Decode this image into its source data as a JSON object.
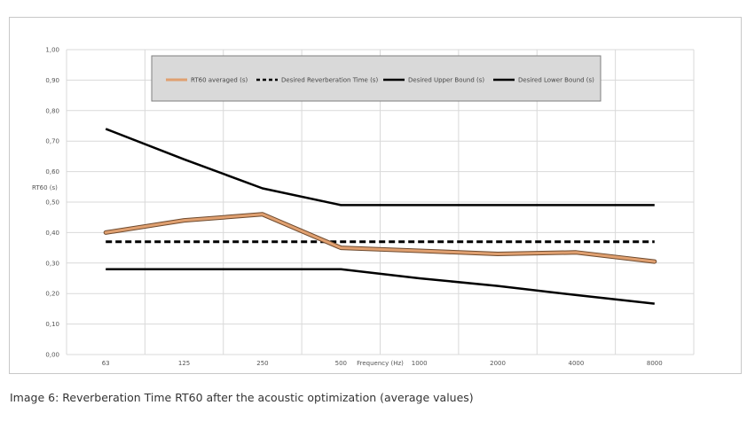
{
  "caption": "Image 6: Reverberation Time RT60 after the acoustic optimization (average values)",
  "chart_data": {
    "type": "line",
    "categories": [
      "63",
      "125",
      "250",
      "500",
      "1000",
      "2000",
      "4000",
      "8000"
    ],
    "xlabel": "Frequency (Hz)",
    "ylabel": "RT60 (s)",
    "ylim": [
      0,
      1
    ],
    "yticks": [
      "0,00",
      "0,10",
      "0,20",
      "0,30",
      "0,40",
      "0,50",
      "0,60",
      "0,70",
      "0,80",
      "0,90",
      "1,00"
    ],
    "grid": true,
    "legend_position": "top-center",
    "series": [
      {
        "name": "RT60 averaged (s)",
        "color": "#e0a070",
        "style": "solid-outlined",
        "values": [
          0.4,
          0.44,
          0.46,
          0.35,
          0.34,
          0.33,
          0.335,
          0.305
        ]
      },
      {
        "name": "Desired Reverberation Time (s)",
        "color": "#000000",
        "style": "dashed",
        "values": [
          0.37,
          0.37,
          0.37,
          0.37,
          0.37,
          0.37,
          0.37,
          0.37
        ]
      },
      {
        "name": "Desired Upper Bound (s)",
        "color": "#000000",
        "style": "solid",
        "values": [
          0.74,
          0.64,
          0.545,
          0.49,
          0.49,
          0.49,
          0.49,
          0.49
        ]
      },
      {
        "name": "Desired Lower Bound (s)",
        "color": "#000000",
        "style": "solid",
        "values": [
          0.28,
          0.28,
          0.28,
          0.28,
          0.25,
          0.225,
          0.195,
          0.167
        ]
      }
    ]
  }
}
